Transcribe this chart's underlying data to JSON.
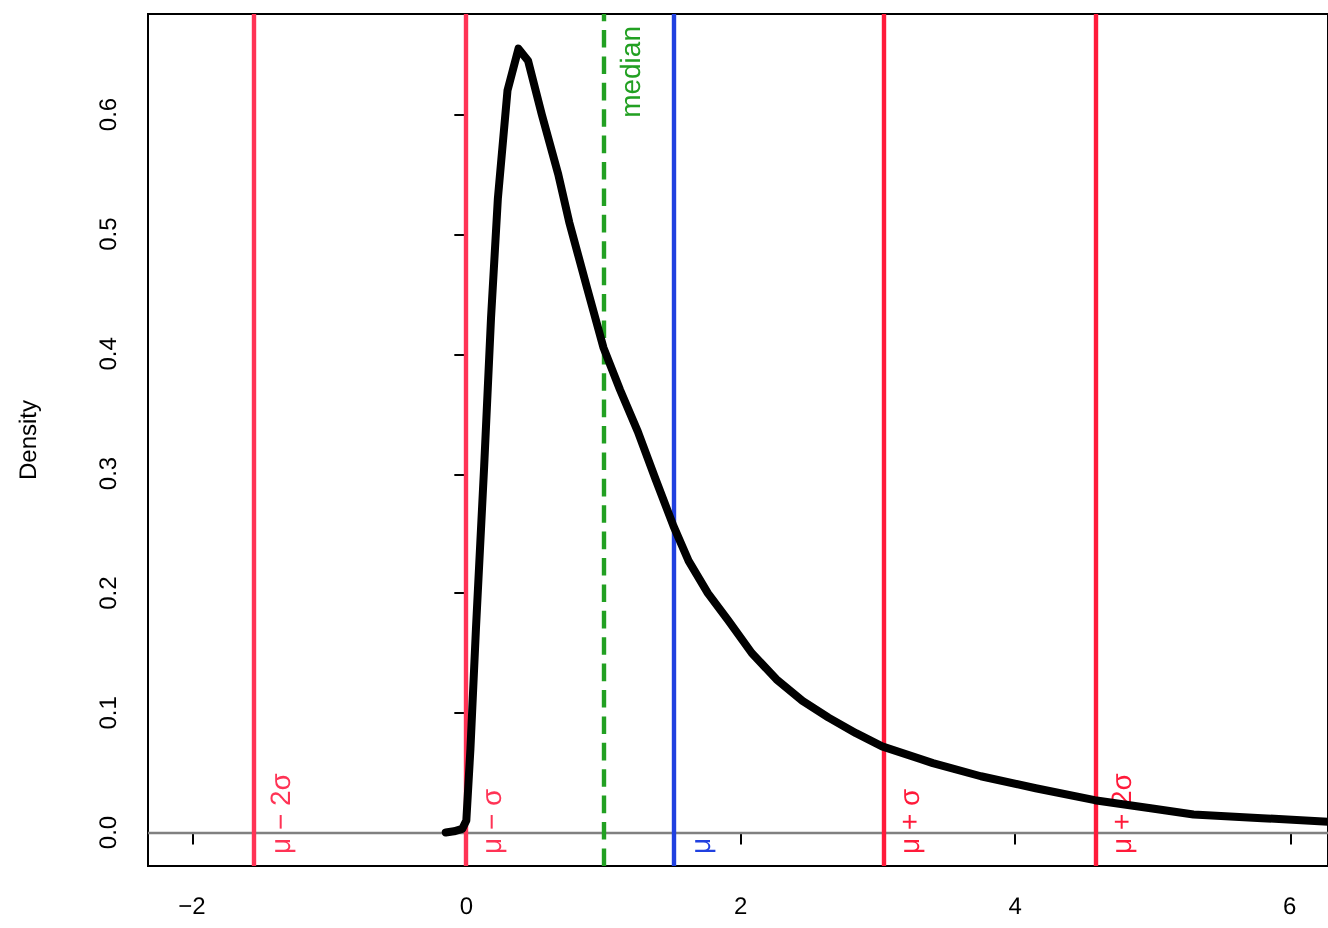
{
  "chart_data": {
    "type": "line",
    "ylabel": "Density",
    "marker": "none",
    "line_style": "solid",
    "grid": false,
    "x": [
      -0.15,
      -0.09,
      -0.03,
      0.0,
      0.03,
      0.07,
      0.13,
      0.18,
      0.23,
      0.3,
      0.38,
      0.45,
      0.55,
      0.67,
      0.75,
      0.88,
      1.0,
      1.12,
      1.25,
      1.38,
      1.51,
      1.62,
      1.76,
      1.91,
      2.08,
      2.26,
      2.45,
      2.64,
      2.84,
      3.03,
      3.4,
      3.75,
      4.15,
      4.58,
      5.0,
      5.3,
      5.8,
      6.28
    ],
    "series": [
      {
        "color": "#000000",
        "values": [
          0.0,
          0.001,
          0.003,
          0.01,
          0.07,
          0.17,
          0.306,
          0.43,
          0.53,
          0.62,
          0.655,
          0.645,
          0.6,
          0.55,
          0.51,
          0.455,
          0.405,
          0.37,
          0.335,
          0.295,
          0.256,
          0.227,
          0.2,
          0.177,
          0.15,
          0.128,
          0.11,
          0.096,
          0.083,
          0.072,
          0.058,
          0.047,
          0.037,
          0.027,
          0.02,
          0.015,
          0.012,
          0.009
        ]
      }
    ],
    "xlim": [
      -2.32,
      6.28
    ],
    "xticks": [
      -2,
      0,
      2,
      4,
      6
    ],
    "ylim": [
      -0.028,
      0.684
    ],
    "yticks": [
      {
        "value": 0,
        "label": "0.0"
      },
      0.1,
      0.2,
      0.3,
      0.4,
      0.5,
      0.6
    ],
    "ref_lines": [
      {
        "axis": "y",
        "value": 0,
        "color": "#808080"
      },
      {
        "axis": "x",
        "value": -1.55,
        "label": "μ − 2σ",
        "color": "#ff3355"
      },
      {
        "axis": "x",
        "value": -0.01,
        "label": "μ − σ",
        "color": "#ff3355"
      },
      {
        "axis": "x",
        "value": 1.0,
        "label": "median",
        "color": "#22a022",
        "line_style": "dashed"
      },
      {
        "axis": "x",
        "value": 1.51,
        "label": "μ",
        "color": "#2040e0"
      },
      {
        "axis": "x",
        "value": 3.04,
        "label": "μ + σ",
        "color": "#ff1a3a"
      },
      {
        "axis": "x",
        "value": 4.58,
        "label": "μ + 2σ",
        "color": "#ff1a3a"
      }
    ]
  }
}
